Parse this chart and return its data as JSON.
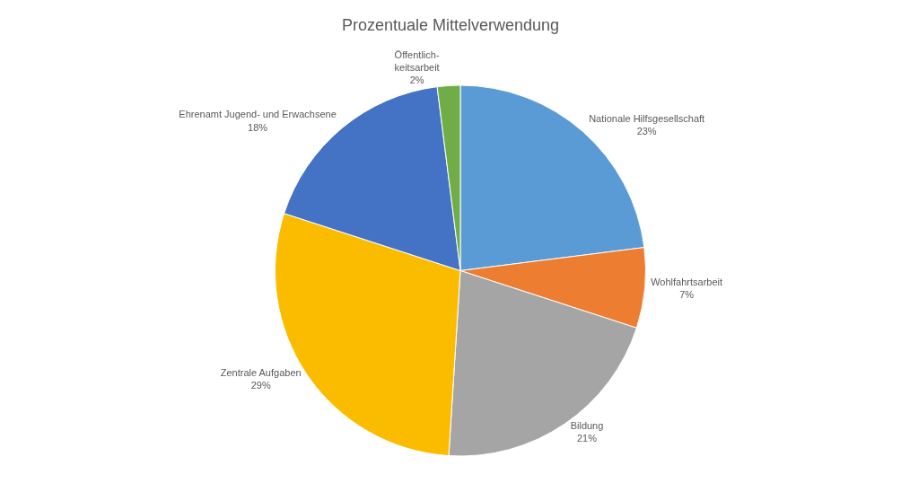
{
  "chart_data": {
    "type": "pie",
    "title": "Prozentuale Mittelverwendung",
    "categories": [
      "Nationale Hilfsgesellschaft",
      "Wohlfahrtsarbeit",
      "Bildung",
      "Zentrale Aufgaben",
      "Ehrenamt Jugend- und Erwachsene",
      "Öffentlich-\nkeitsarbeit"
    ],
    "values": [
      23,
      7,
      21,
      29,
      18,
      2
    ],
    "value_labels": [
      "23%",
      "7%",
      "21%",
      "29%",
      "18%",
      "2%"
    ],
    "colors": [
      "#5b9bd5",
      "#ed7d31",
      "#a5a5a5",
      "#fbbc00",
      "#4472c4",
      "#70ad47"
    ],
    "legend": false
  }
}
